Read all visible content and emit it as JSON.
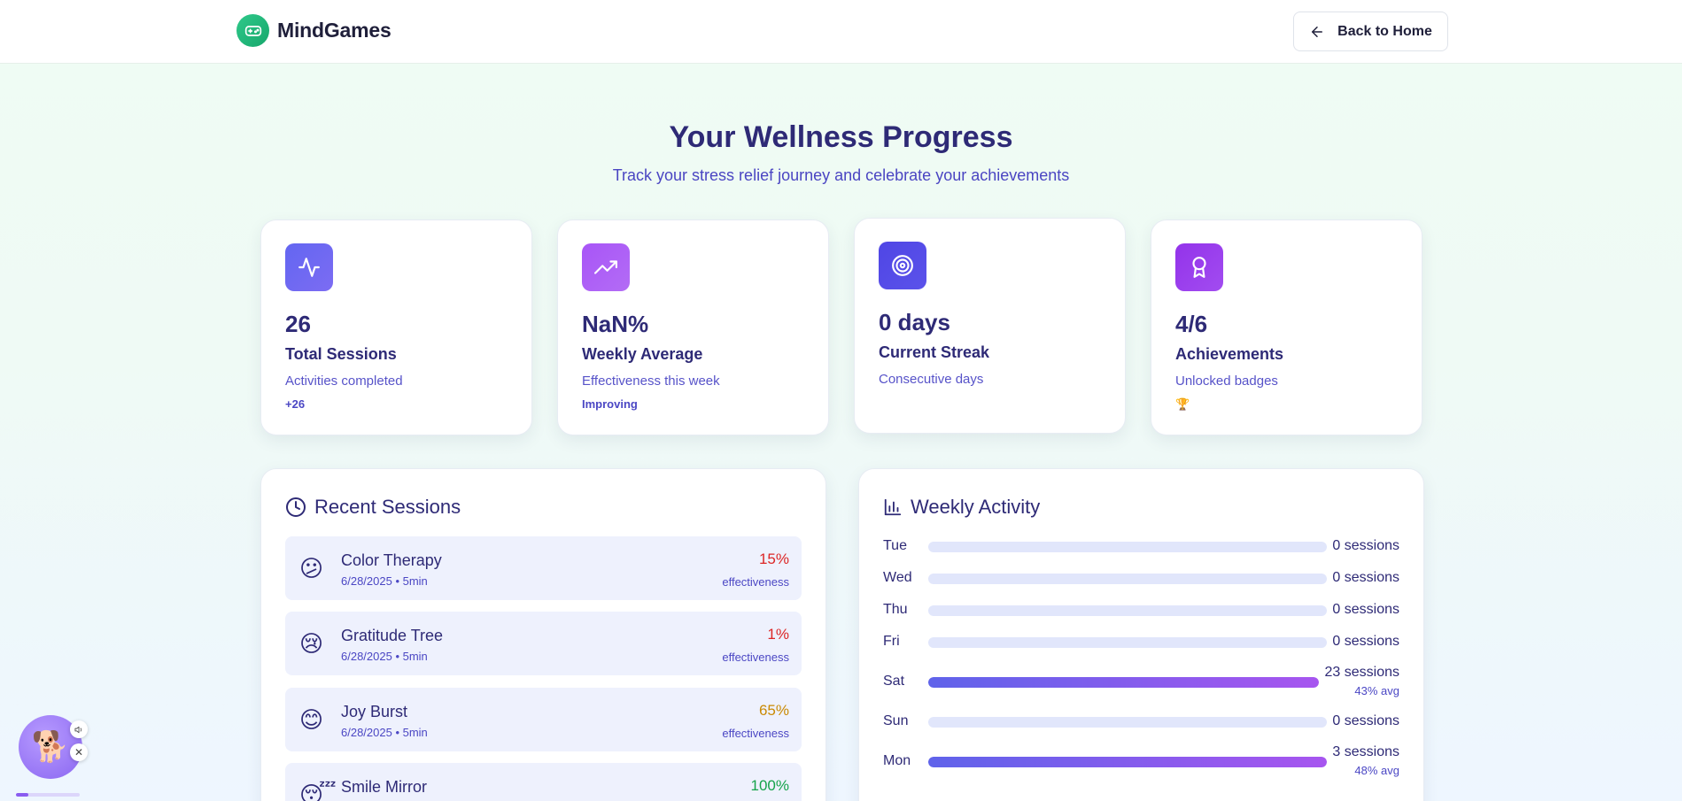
{
  "brand": {
    "name": "MindGames",
    "icon": "gamepad-icon"
  },
  "header": {
    "back_label": "Back to Home",
    "back_icon": "arrow-left-icon"
  },
  "hero": {
    "title": "Your Wellness Progress",
    "subtitle": "Track your stress relief journey and celebrate your achievements"
  },
  "stats": [
    {
      "icon": "activity-icon",
      "color": "#6366f1",
      "value": "26",
      "label": "Total Sessions",
      "desc": "Activities completed",
      "extra": "+26"
    },
    {
      "icon": "trending-up-icon",
      "color": "#a855f7",
      "value": "NaN%",
      "label": "Weekly Average",
      "desc": "Effectiveness this week",
      "extra": "Improving"
    },
    {
      "icon": "target-icon",
      "color": "#4f46e5",
      "value": "0 days",
      "label": "Current Streak",
      "desc": "Consecutive days",
      "extra": ""
    },
    {
      "icon": "award-icon",
      "color": "#9333ea",
      "value": "4/6",
      "label": "Achievements",
      "desc": "Unlocked badges",
      "extra": "🏆"
    }
  ],
  "recent": {
    "title": "Recent Sessions",
    "icon": "clock-icon",
    "sessions": [
      {
        "emoji": "😕",
        "name": "Color Therapy",
        "meta": "6/28/2025 • 5min",
        "effectiveness": "15%",
        "eff_label": "effectiveness",
        "color": "#dc2626"
      },
      {
        "emoji": "😢",
        "name": "Gratitude Tree",
        "meta": "6/28/2025 • 5min",
        "effectiveness": "1%",
        "eff_label": "effectiveness",
        "color": "#dc2626"
      },
      {
        "emoji": "😊",
        "name": "Joy Burst",
        "meta": "6/28/2025 • 5min",
        "effectiveness": "65%",
        "eff_label": "effectiveness",
        "color": "#ca8a04"
      },
      {
        "emoji": "😴",
        "name": "Smile Mirror",
        "meta": "",
        "effectiveness": "100%",
        "eff_label": "",
        "color": "#16a34a"
      }
    ]
  },
  "weekly": {
    "title": "Weekly Activity",
    "icon": "bar-chart-icon",
    "days": [
      {
        "day": "Tue",
        "count": "0 sessions",
        "avg": "",
        "fill": 0
      },
      {
        "day": "Wed",
        "count": "0 sessions",
        "avg": "",
        "fill": 0
      },
      {
        "day": "Thu",
        "count": "0 sessions",
        "avg": "",
        "fill": 0
      },
      {
        "day": "Fri",
        "count": "0 sessions",
        "avg": "",
        "fill": 0
      },
      {
        "day": "Sat",
        "count": "23 sessions",
        "avg": "43% avg",
        "fill": 1.0
      },
      {
        "day": "Sun",
        "count": "0 sessions",
        "avg": "",
        "fill": 0
      },
      {
        "day": "Mon",
        "count": "3 sessions",
        "avg": "48% avg",
        "fill": 1.0
      }
    ]
  },
  "companion": {
    "emoji": "🐕",
    "sound_icon": "speaker-icon",
    "close_icon": "close-icon",
    "progress": 0.2
  }
}
